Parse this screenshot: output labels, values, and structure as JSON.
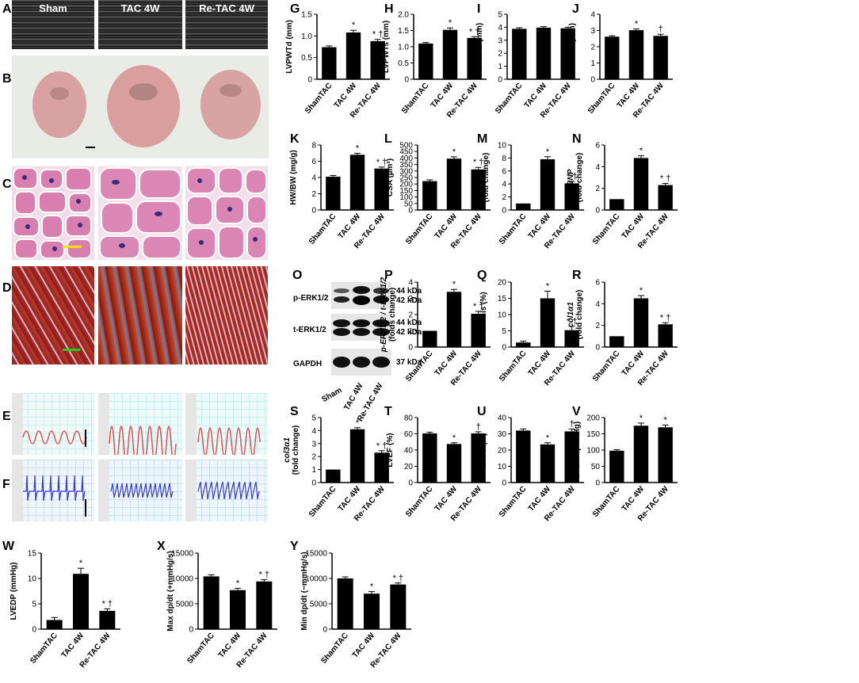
{
  "panel_letters": [
    "A",
    "B",
    "C",
    "D",
    "E",
    "F",
    "G",
    "H",
    "I",
    "J",
    "K",
    "L",
    "M",
    "N",
    "O",
    "P",
    "Q",
    "R",
    "S",
    "T",
    "U",
    "V",
    "W",
    "X",
    "Y"
  ],
  "echo_labels": [
    "Sham",
    "TAC 4W",
    "Re-TAC 4W"
  ],
  "western_blot": {
    "rows": [
      {
        "name": "p-ERK1/2",
        "kda": [
          "44 kDa",
          "42 kDa"
        ]
      },
      {
        "name": "t-ERK1/2",
        "kda": [
          "44 kDa",
          "42 kDa"
        ]
      },
      {
        "name": "GAPDH",
        "kda": [
          "37 kDa"
        ]
      }
    ],
    "lanes": [
      "Sham",
      "TAC 4W",
      "Re-TAC 4W"
    ]
  },
  "colors": {
    "bar": "#000000",
    "trace_red": "#e05050",
    "trace_blue": "#3a3acc",
    "scale_yellow": "#f5e10a",
    "scale_green": "#22cc22"
  },
  "chart_data": [
    {
      "id": "G",
      "type": "bar",
      "categories": [
        "ShamTAC",
        "TAC 4W",
        "Re-TAC 4W"
      ],
      "values": [
        0.74,
        1.08,
        0.88
      ],
      "errors": [
        0.03,
        0.05,
        0.04
      ],
      "marks": [
        "",
        "*",
        "* †"
      ],
      "ylabel": "LVPWTd (mm)",
      "ylim": [
        0,
        1.5
      ],
      "ticks": [
        "0",
        "0.5",
        "1.0",
        "1.5"
      ],
      "tick_values": [
        0,
        0.5,
        1.0,
        1.5
      ]
    },
    {
      "id": "H",
      "type": "bar",
      "categories": [
        "ShamTAC",
        "TAC 4W",
        "Re-TAC 4W"
      ],
      "values": [
        1.1,
        1.52,
        1.27
      ],
      "errors": [
        0.03,
        0.06,
        0.04
      ],
      "marks": [
        "",
        "*",
        "* †"
      ],
      "ylabel": "LVPWTs (mm)",
      "ylim": [
        0,
        2.0
      ],
      "ticks": [
        "0",
        "0.5",
        "1.0",
        "1.5",
        "2.0"
      ],
      "tick_values": [
        0,
        0.5,
        1.0,
        1.5,
        2.0
      ]
    },
    {
      "id": "I",
      "type": "bar",
      "categories": [
        "ShamTAC",
        "TAC 4W",
        "Re-TAC 4W"
      ],
      "values": [
        3.88,
        3.97,
        3.92
      ],
      "errors": [
        0.08,
        0.08,
        0.08
      ],
      "marks": [
        "",
        "",
        ""
      ],
      "ylabel": "LVEDD (mm)",
      "ylim": [
        0,
        5
      ],
      "ticks": [
        "0",
        "1",
        "2",
        "3",
        "4",
        "5"
      ],
      "tick_values": [
        0,
        1,
        2,
        3,
        4,
        5
      ]
    },
    {
      "id": "J",
      "type": "bar",
      "categories": [
        "ShamTAC",
        "TAC 4W",
        "Re-TAC 4W"
      ],
      "values": [
        2.62,
        3.02,
        2.67
      ],
      "errors": [
        0.06,
        0.08,
        0.1
      ],
      "marks": [
        "",
        "*",
        "†"
      ],
      "ylabel": "LVESD (mm)",
      "ylim": [
        0,
        4
      ],
      "ticks": [
        "0",
        "1",
        "2",
        "3",
        "4"
      ],
      "tick_values": [
        0,
        1,
        2,
        3,
        4
      ]
    },
    {
      "id": "K",
      "type": "bar",
      "categories": [
        "ShamTAC",
        "TAC 4W",
        "Re-TAC 4W"
      ],
      "values": [
        4.1,
        6.8,
        5.1
      ],
      "errors": [
        0.15,
        0.18,
        0.18
      ],
      "marks": [
        "",
        "*",
        "* †"
      ],
      "ylabel": "HW/BW (mg/g)",
      "ylim": [
        0,
        8
      ],
      "ticks": [
        "0",
        "2",
        "4",
        "6",
        "8"
      ],
      "tick_values": [
        0,
        2,
        4,
        6,
        8
      ]
    },
    {
      "id": "L",
      "type": "bar",
      "categories": [
        "ShamTAC",
        "TAC 4W",
        "Re-TAC 4W"
      ],
      "values": [
        222,
        395,
        312
      ],
      "errors": [
        10,
        14,
        16
      ],
      "marks": [
        "",
        "*",
        "* †"
      ],
      "ylabel": "CSA (µm²)",
      "ylim": [
        0,
        500
      ],
      "ticks": [
        "0",
        "50",
        "100",
        "150",
        "200",
        "250",
        "300",
        "350",
        "400",
        "450",
        "500"
      ],
      "tick_values": [
        0,
        50,
        100,
        150,
        200,
        250,
        300,
        350,
        400,
        450,
        500
      ]
    },
    {
      "id": "M",
      "type": "bar",
      "categories": [
        "ShamTAC",
        "TAC 4W",
        "Re-TAC 4W"
      ],
      "values": [
        1.0,
        7.8,
        4.1
      ],
      "errors": [
        0,
        0.4,
        0.3
      ],
      "marks": [
        "",
        "*",
        "* †"
      ],
      "ylabel": "ANP",
      "ylabel2": "(fold change)",
      "ylim": [
        0,
        10
      ],
      "ticks": [
        "0",
        "2",
        "4",
        "6",
        "8",
        "10"
      ],
      "tick_values": [
        0,
        2,
        4,
        6,
        8,
        10
      ]
    },
    {
      "id": "N",
      "type": "bar",
      "categories": [
        "ShamTAC",
        "TAC 4W",
        "Re-TAC 4W"
      ],
      "values": [
        1.0,
        4.8,
        2.3
      ],
      "errors": [
        0,
        0.2,
        0.15
      ],
      "marks": [
        "",
        "*",
        "* †"
      ],
      "ylabel": "BNP",
      "ylabel2": "(fold change)",
      "ylim": [
        0,
        6
      ],
      "ticks": [
        "0",
        "2",
        "4",
        "6"
      ],
      "tick_values": [
        0,
        2,
        4,
        6
      ]
    },
    {
      "id": "P",
      "type": "bar",
      "categories": [
        "ShamTAC",
        "TAC 4W",
        "Re-TAC 4W"
      ],
      "values": [
        1.0,
        3.4,
        2.05
      ],
      "errors": [
        0,
        0.15,
        0.15
      ],
      "marks": [
        "",
        "*",
        "* †"
      ],
      "ylabel": "p-ERK1/2 / t-ERK1/2",
      "ylabel2": "(folds change)",
      "ylim": [
        0,
        4
      ],
      "ticks": [
        "0",
        "1",
        "2",
        "3",
        "4"
      ],
      "tick_values": [
        0,
        1,
        2,
        3,
        4
      ]
    },
    {
      "id": "Q",
      "type": "bar",
      "categories": [
        "ShamTAC",
        "TAC 4W",
        "Re-TAC 4W"
      ],
      "values": [
        1.4,
        15.0,
        5.2
      ],
      "errors": [
        0.4,
        2.2,
        1.2
      ],
      "marks": [
        "",
        "*",
        "* †"
      ],
      "ylabel": "Fibrosis (%)",
      "ylim": [
        0,
        20
      ],
      "ticks": [
        "0",
        "5",
        "10",
        "15",
        "20"
      ],
      "tick_values": [
        0,
        5,
        10,
        15,
        20
      ]
    },
    {
      "id": "R",
      "type": "bar",
      "categories": [
        "ShamTAC",
        "TAC 4W",
        "Re-TAC 4W"
      ],
      "values": [
        1.0,
        4.5,
        2.1
      ],
      "errors": [
        0,
        0.25,
        0.15
      ],
      "marks": [
        "",
        "*",
        "* †"
      ],
      "ylabel": "col1α1",
      "ylabel2": "(fold change)",
      "ylim": [
        0,
        6
      ],
      "ticks": [
        "0",
        "2",
        "4",
        "6"
      ],
      "tick_values": [
        0,
        2,
        4,
        6
      ]
    },
    {
      "id": "S",
      "type": "bar",
      "categories": [
        "ShamTAC",
        "TAC 4W",
        "Re-TAC 4W"
      ],
      "values": [
        1.0,
        4.1,
        2.3
      ],
      "errors": [
        0,
        0.12,
        0.15
      ],
      "marks": [
        "",
        "*",
        "* †"
      ],
      "ylabel": "col3α1",
      "ylabel2": "(fold change)",
      "ylim": [
        0,
        5
      ],
      "ticks": [
        "0",
        "1",
        "2",
        "3",
        "4",
        "5"
      ],
      "tick_values": [
        0,
        1,
        2,
        3,
        4,
        5
      ]
    },
    {
      "id": "T",
      "type": "bar",
      "categories": [
        "ShamTAC",
        "TAC 4W",
        "Re-TAC 4W"
      ],
      "values": [
        60.5,
        47.5,
        60.5
      ],
      "errors": [
        1.5,
        1.5,
        2.0
      ],
      "marks": [
        "",
        "*",
        "†"
      ],
      "ylabel": "LVEF (%)",
      "ylim": [
        0,
        80
      ],
      "ticks": [
        "0",
        "20",
        "40",
        "60",
        "80"
      ],
      "tick_values": [
        0,
        20,
        40,
        60,
        80
      ]
    },
    {
      "id": "U",
      "type": "bar",
      "categories": [
        "ShamTAC",
        "TAC 4W",
        "Re-TAC 4W"
      ],
      "values": [
        32,
        23.5,
        31.5
      ],
      "errors": [
        1,
        1,
        1.5
      ],
      "marks": [
        "",
        "*",
        "†"
      ],
      "ylabel": "LVFS (%)",
      "ylim": [
        0,
        40
      ],
      "ticks": [
        "0",
        "10",
        "20",
        "30",
        "40"
      ],
      "tick_values": [
        0,
        10,
        20,
        30,
        40
      ]
    },
    {
      "id": "V",
      "type": "bar",
      "categories": [
        "ShamTAC",
        "TAC 4W",
        "Re-TAC 4W"
      ],
      "values": [
        98,
        175,
        170
      ],
      "errors": [
        3,
        8,
        7
      ],
      "marks": [
        "",
        "*",
        "*"
      ],
      "ylabel": "LVESP (mmHg)",
      "ylim": [
        0,
        200
      ],
      "ticks": [
        "0",
        "50",
        "100",
        "150",
        "200"
      ],
      "tick_values": [
        0,
        50,
        100,
        150,
        200
      ]
    },
    {
      "id": "W",
      "type": "bar",
      "categories": [
        "ShamTAC",
        "TAC 4W",
        "Re-TAC 4W"
      ],
      "values": [
        1.8,
        10.9,
        3.6
      ],
      "errors": [
        0.5,
        1.1,
        0.4
      ],
      "marks": [
        "",
        "*",
        "* †"
      ],
      "ylabel": "LVEDP (mmHg)",
      "ylim": [
        0,
        15
      ],
      "ticks": [
        "0",
        "5",
        "10",
        "15"
      ],
      "tick_values": [
        0,
        5,
        10,
        15
      ]
    },
    {
      "id": "X",
      "type": "bar",
      "categories": [
        "ShamTAC",
        "TAC 4W",
        "Re-TAC 4W"
      ],
      "values": [
        10400,
        7700,
        9400
      ],
      "errors": [
        300,
        350,
        350
      ],
      "marks": [
        "",
        "*",
        "* †"
      ],
      "ylabel": "Max dp/dt (+mmHg/s)",
      "ylim": [
        0,
        15000
      ],
      "ticks": [
        "0",
        "5000",
        "10000",
        "15000"
      ],
      "tick_values": [
        0,
        5000,
        10000,
        15000
      ]
    },
    {
      "id": "Y",
      "type": "bar",
      "categories": [
        "ShamTAC",
        "TAC 4W",
        "Re-TAC 4W"
      ],
      "values": [
        10000,
        7000,
        8800
      ],
      "errors": [
        300,
        400,
        300
      ],
      "marks": [
        "",
        "*",
        "* †"
      ],
      "ylabel": "Min dp/dt (−mmHg/s)",
      "ylim": [
        0,
        15000
      ],
      "ticks": [
        "0",
        "5000",
        "10000",
        "15000"
      ],
      "tick_values": [
        0,
        5000,
        10000,
        15000
      ]
    }
  ]
}
